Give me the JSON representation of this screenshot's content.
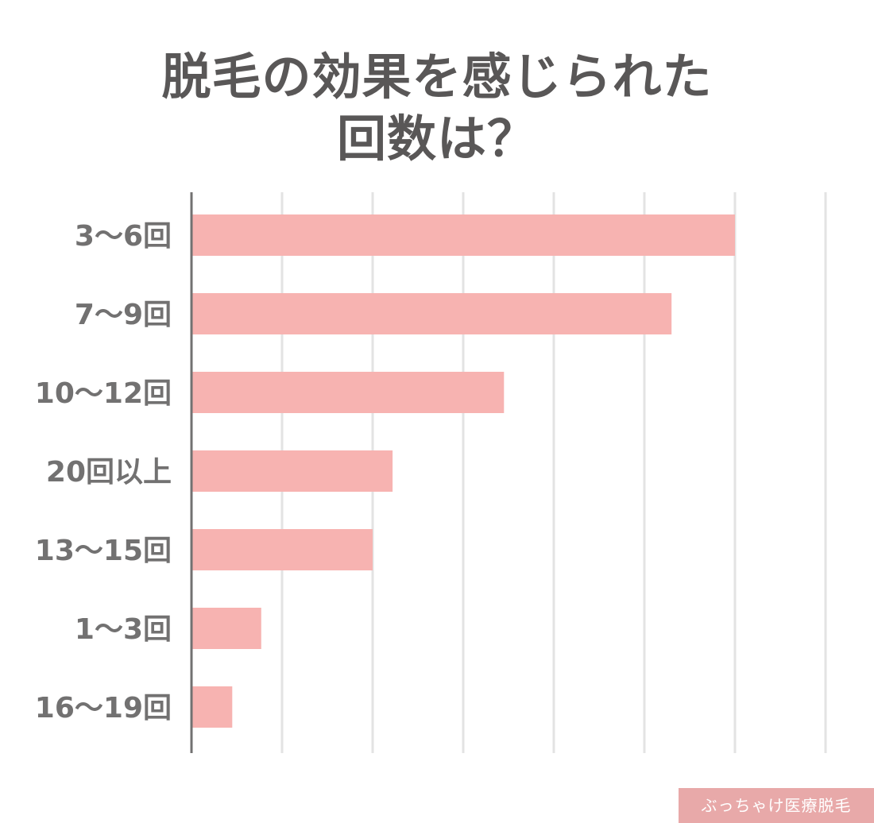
{
  "title_lines": [
    "脱毛の効果を感じられた",
    "回数は？"
  ],
  "credit": "ぶっちゃけ医療脱毛",
  "chart_data": {
    "type": "bar",
    "orientation": "horizontal",
    "title": "脱毛の効果を感じられた回数は？",
    "categories": [
      "3〜6回",
      "7〜9回",
      "10〜12回",
      "20回以上",
      "13〜15回",
      "1〜3回",
      "16〜19回"
    ],
    "values": [
      60,
      53,
      34.5,
      22.2,
      20,
      7.7,
      4.5
    ],
    "xlim": [
      0,
      70
    ],
    "gridlines": [
      0,
      10,
      20,
      30,
      40,
      50,
      60,
      70
    ],
    "grid": true,
    "tick_labels_shown": false,
    "colors": {
      "bar": "#f7b3b1",
      "grid": "#e3e3e3",
      "axis": "#727171",
      "label": "#727171",
      "title": "#595757",
      "credit_bg": "#e8a9a9"
    }
  }
}
